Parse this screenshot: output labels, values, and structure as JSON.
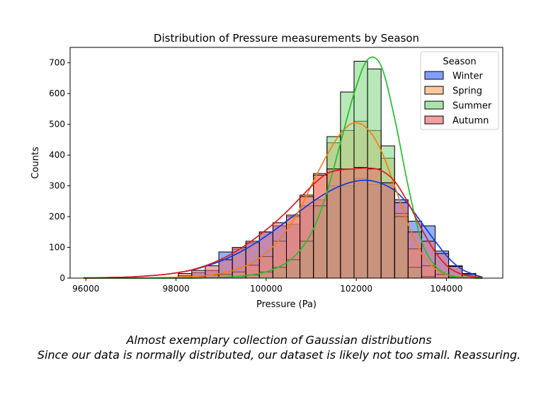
{
  "chart_data": {
    "type": "histogram",
    "title": "Distribution of Pressure measurements by Season",
    "xlabel": "Pressure (Pa)",
    "ylabel": "Counts",
    "xlim": [
      95650,
      105250
    ],
    "ylim": [
      0,
      750
    ],
    "x_ticks": [
      96000,
      98000,
      100000,
      102000,
      104000
    ],
    "y_ticks": [
      0,
      100,
      200,
      300,
      400,
      500,
      600,
      700
    ],
    "grid": false,
    "stacked": false,
    "kde": true,
    "legend": {
      "title": "Season",
      "placement": "top-right"
    },
    "bins": {
      "edges": [
        95950,
        96250,
        96550,
        96850,
        97150,
        97450,
        97750,
        98050,
        98350,
        98650,
        98950,
        99250,
        99550,
        99850,
        100150,
        100450,
        100750,
        101050,
        101350,
        101650,
        101950,
        102250,
        102550,
        102850,
        103150,
        103450,
        103750,
        104050,
        104350,
        104650
      ]
    },
    "series": [
      {
        "name": "Winter",
        "bar_color": "#3d6cf7",
        "kde_color": "#0b3de0",
        "counts": [
          0,
          0,
          0,
          0,
          0,
          0,
          0,
          8,
          18,
          25,
          85,
          95,
          115,
          150,
          170,
          175,
          235,
          255,
          300,
          300,
          325,
          305,
          310,
          255,
          185,
          170,
          88,
          40,
          15
        ],
        "kde": [
          1,
          1,
          2,
          3,
          5,
          8,
          12,
          18,
          26,
          38,
          53,
          72,
          95,
          122,
          152,
          185,
          218,
          250,
          278,
          300,
          314,
          318,
          308,
          285,
          240,
          180,
          120,
          65,
          28,
          10,
          3
        ]
      },
      {
        "name": "Spring",
        "bar_color": "#f7ad6a",
        "kde_color": "#f57f17",
        "counts": [
          0,
          0,
          0,
          0,
          0,
          0,
          0,
          2,
          5,
          10,
          12,
          20,
          42,
          70,
          120,
          200,
          270,
          340,
          440,
          480,
          510,
          480,
          390,
          210,
          95,
          40,
          12,
          3,
          0
        ],
        "kde": [
          0,
          0,
          0,
          0,
          0,
          1,
          2,
          3,
          5,
          8,
          14,
          24,
          40,
          65,
          102,
          155,
          225,
          315,
          400,
          470,
          505,
          485,
          415,
          300,
          175,
          80,
          30,
          10,
          3,
          1,
          0
        ]
      },
      {
        "name": "Summer",
        "bar_color": "#7ed67e",
        "kde_color": "#22c02a",
        "counts": [
          0,
          0,
          0,
          0,
          0,
          0,
          0,
          0,
          0,
          0,
          0,
          5,
          10,
          20,
          35,
          60,
          120,
          235,
          460,
          605,
          705,
          680,
          430,
          200,
          35,
          5,
          0,
          0,
          0
        ],
        "kde": [
          0,
          0,
          0,
          0,
          0,
          0,
          0,
          0,
          0,
          1,
          2,
          4,
          8,
          15,
          28,
          50,
          90,
          160,
          280,
          440,
          600,
          710,
          690,
          520,
          300,
          120,
          40,
          10,
          2,
          0,
          0
        ]
      },
      {
        "name": "Autumn",
        "bar_color": "#eb6b6b",
        "kde_color": "#e01b1b",
        "counts": [
          0,
          0,
          0,
          0,
          0,
          0,
          0,
          15,
          25,
          40,
          60,
          100,
          120,
          150,
          180,
          205,
          265,
          335,
          355,
          355,
          360,
          355,
          310,
          245,
          150,
          120,
          80,
          38,
          12
        ],
        "kde": [
          0,
          1,
          2,
          3,
          5,
          8,
          12,
          18,
          27,
          40,
          58,
          80,
          108,
          140,
          175,
          215,
          260,
          305,
          340,
          352,
          355,
          358,
          350,
          315,
          245,
          160,
          85,
          35,
          12,
          4,
          1
        ]
      }
    ],
    "kde_x": [
      95950,
      96250,
      96550,
      96850,
      97150,
      97450,
      97750,
      98050,
      98350,
      98650,
      98950,
      99250,
      99550,
      99850,
      100150,
      100450,
      100750,
      101050,
      101350,
      101650,
      101950,
      102250,
      102550,
      102850,
      103150,
      103450,
      103750,
      104050,
      104350,
      104650,
      104800
    ]
  },
  "caption": {
    "line1": "Almost exemplary collection of Gaussian distributions",
    "line2": "Since our data is normally distributed, our dataset is likely not too small. Reassuring."
  }
}
